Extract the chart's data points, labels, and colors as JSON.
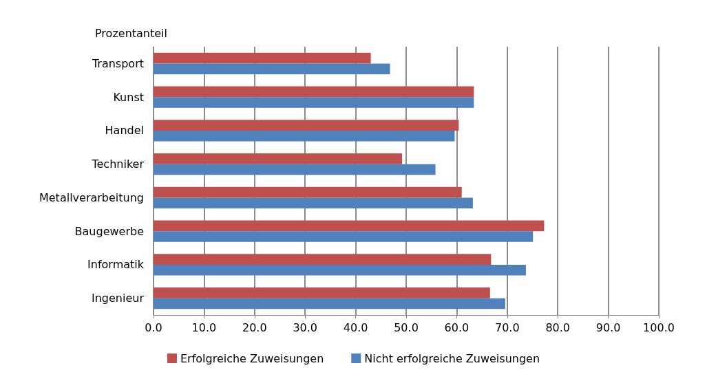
{
  "chart_data": {
    "type": "bar",
    "orientation": "horizontal",
    "ylabel": "Prozentanteil",
    "categories": [
      "Transport",
      "Kunst",
      "Handel",
      "Techniker",
      "Metallverarbeitung",
      "Baugewerbe",
      "Informatik",
      "Ingenieur"
    ],
    "series": [
      {
        "name": "Erfolgreiche Zuweisungen",
        "color": "#c0504d",
        "values": [
          43.0,
          63.4,
          60.4,
          49.2,
          61.0,
          77.3,
          66.8,
          66.6
        ]
      },
      {
        "name": "Nicht erfolgreiche Zuweisungen",
        "color": "#4f81bd",
        "values": [
          46.8,
          63.4,
          59.6,
          55.8,
          63.2,
          75.1,
          73.7,
          69.6
        ]
      }
    ],
    "xlim": [
      0,
      100
    ],
    "xticks": [
      {
        "value": 0,
        "label": "0.0"
      },
      {
        "value": 10,
        "label": "10.0"
      },
      {
        "value": 20,
        "label": "20.0"
      },
      {
        "value": 30,
        "label": "30.0"
      },
      {
        "value": 40,
        "label": "40.0"
      },
      {
        "value": 50,
        "label": "50.0"
      },
      {
        "value": 60,
        "label": "60.0"
      },
      {
        "value": 70,
        "label": "70.0"
      },
      {
        "value": 80,
        "label": "80.0"
      },
      {
        "value": 90,
        "label": "90.0"
      },
      {
        "value": 100,
        "label": "100.0"
      }
    ],
    "grid": "x",
    "legend": "bottom"
  }
}
